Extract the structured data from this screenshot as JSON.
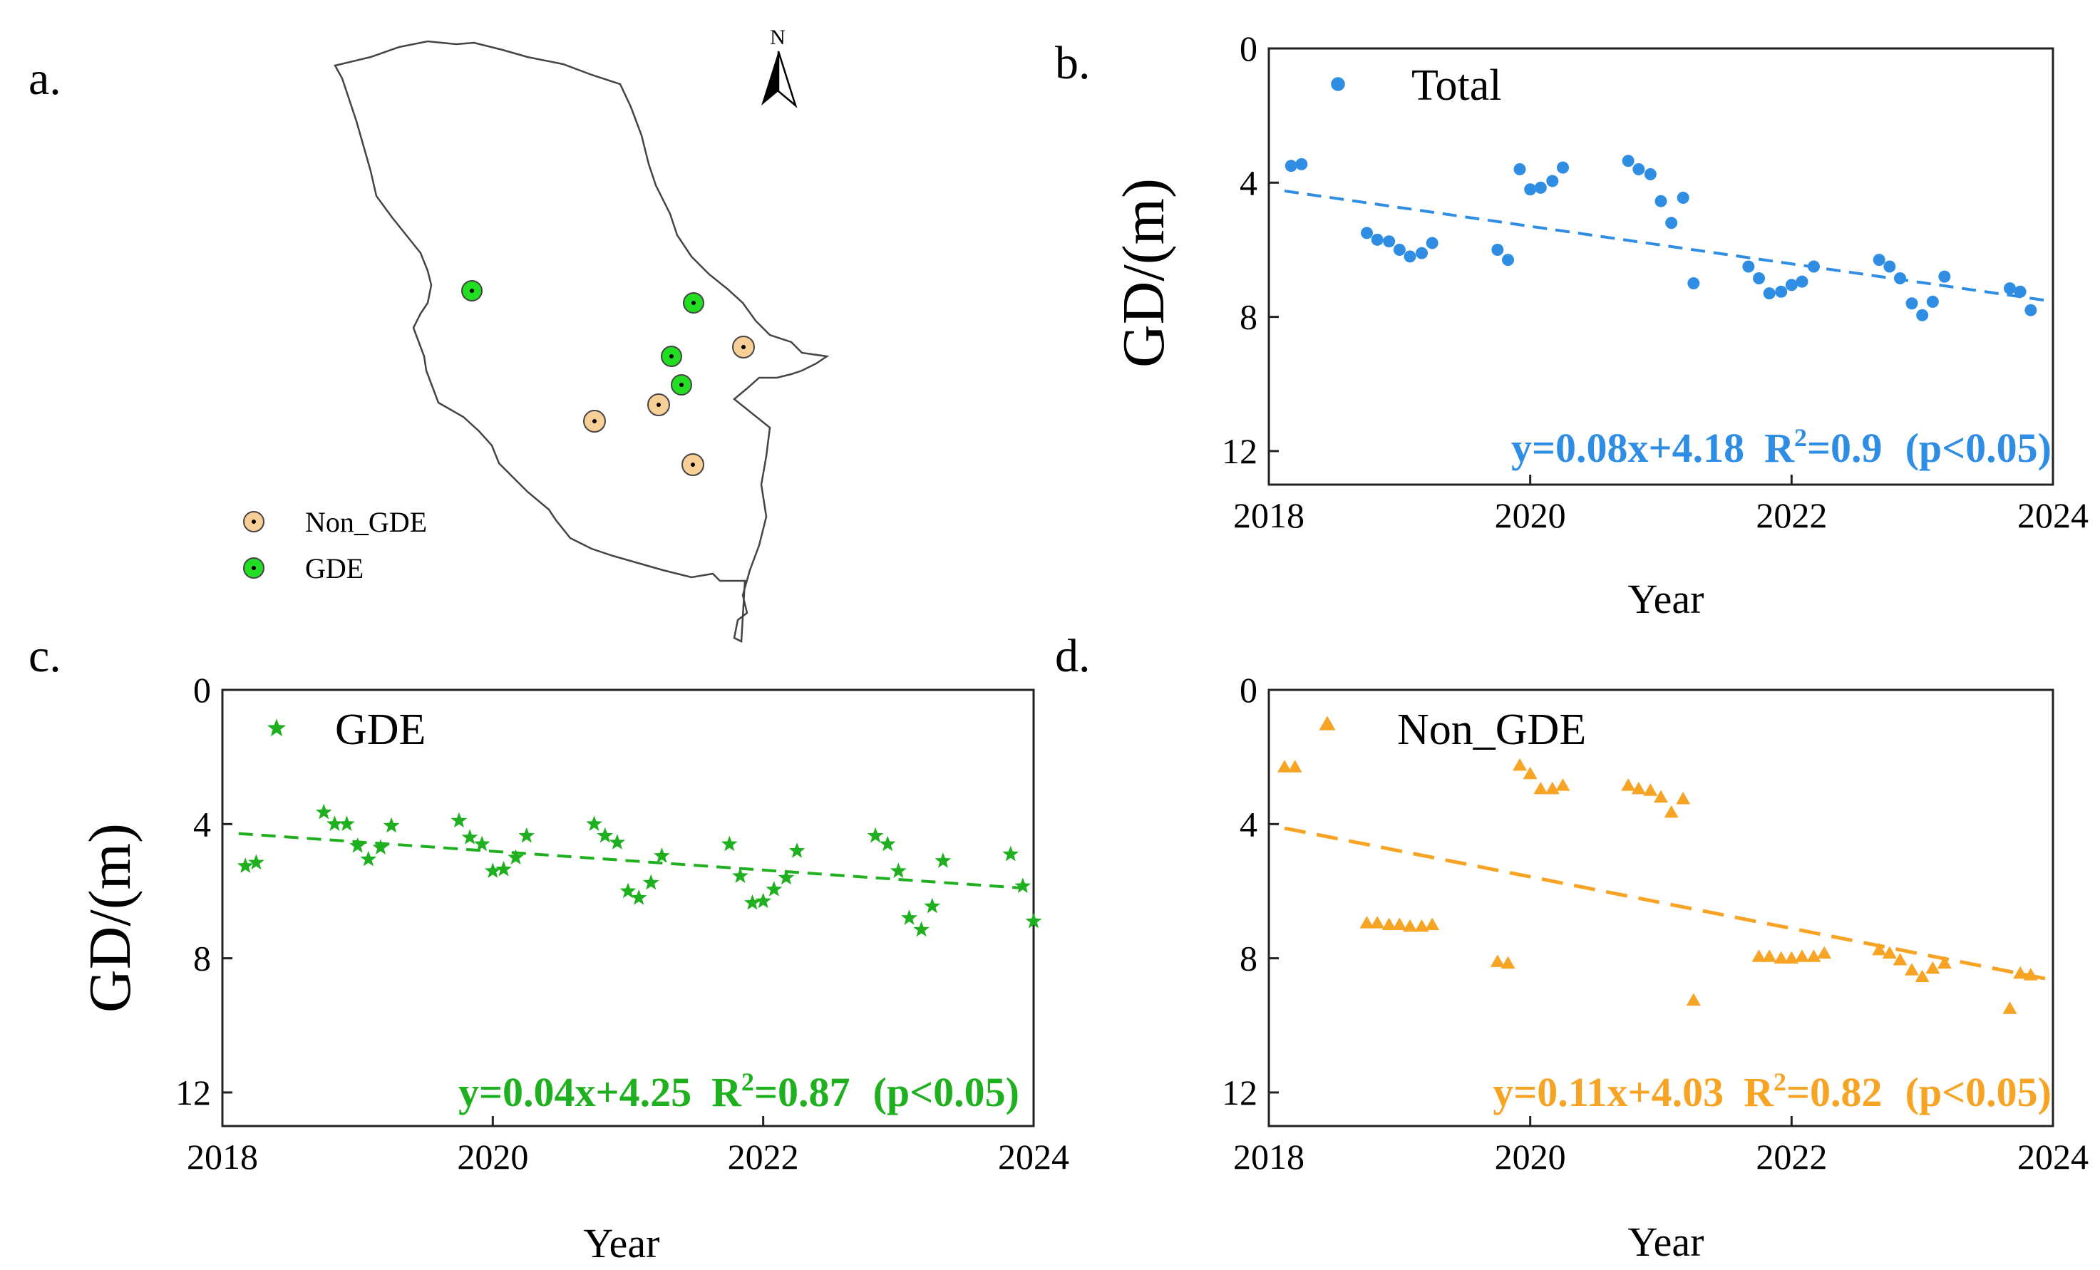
{
  "panels": {
    "a": {
      "label": "a."
    },
    "b": {
      "label": "b."
    },
    "c": {
      "label": "c."
    },
    "d": {
      "label": "d."
    }
  },
  "map": {
    "north_letter": "N",
    "legend": [
      {
        "label": "Non_GDE",
        "color": "#f8cf97"
      },
      {
        "label": "GDE",
        "color": "#22dd22"
      }
    ],
    "outline_color": "#444444"
  },
  "chart_data": [
    {
      "id": "b",
      "type": "scatter",
      "legend": "Total",
      "color": "#2f8de4",
      "marker": "circle",
      "xlabel": "Year",
      "ylabel": "GD/(m)",
      "xlim": [
        2018,
        2024
      ],
      "ylim": [
        0,
        13
      ],
      "y_inverted": true,
      "xticks": [
        2018,
        2020,
        2022,
        2024
      ],
      "yticks": [
        0,
        4,
        8,
        12
      ],
      "trend": {
        "slope": 0.56,
        "intercept": 4.18
      },
      "equation": {
        "fit": "y=0.08x+4.18",
        "r2_prefix": "R",
        "r2_sup": "2",
        "r2_value": "=0.9",
        "p": "(p<0.05)"
      },
      "points": [
        [
          2018.17,
          3.5
        ],
        [
          2018.25,
          3.45
        ],
        [
          2018.75,
          5.5
        ],
        [
          2018.83,
          5.7
        ],
        [
          2018.92,
          5.75
        ],
        [
          2019.0,
          6.0
        ],
        [
          2019.08,
          6.2
        ],
        [
          2019.17,
          6.1
        ],
        [
          2019.25,
          5.8
        ],
        [
          2019.75,
          6.0
        ],
        [
          2019.83,
          6.3
        ],
        [
          2019.92,
          3.6
        ],
        [
          2020.0,
          4.2
        ],
        [
          2020.08,
          4.15
        ],
        [
          2020.17,
          3.95
        ],
        [
          2020.25,
          3.55
        ],
        [
          2020.75,
          3.35
        ],
        [
          2020.83,
          3.6
        ],
        [
          2020.92,
          3.75
        ],
        [
          2021.0,
          4.55
        ],
        [
          2021.08,
          5.2
        ],
        [
          2021.17,
          4.45
        ],
        [
          2021.25,
          7.0
        ],
        [
          2021.67,
          6.5
        ],
        [
          2021.75,
          6.85
        ],
        [
          2021.83,
          7.3
        ],
        [
          2021.92,
          7.25
        ],
        [
          2022.0,
          7.05
        ],
        [
          2022.08,
          6.95
        ],
        [
          2022.17,
          6.5
        ],
        [
          2022.67,
          6.3
        ],
        [
          2022.75,
          6.5
        ],
        [
          2022.83,
          6.85
        ],
        [
          2022.92,
          7.6
        ],
        [
          2023.0,
          7.95
        ],
        [
          2023.08,
          7.55
        ],
        [
          2023.17,
          6.8
        ],
        [
          2023.67,
          7.15
        ],
        [
          2023.75,
          7.25
        ],
        [
          2023.83,
          7.8
        ]
      ]
    },
    {
      "id": "c",
      "type": "scatter",
      "legend": "GDE",
      "color": "#1fb01f",
      "marker": "star",
      "xlabel": "Year",
      "ylabel": "GD/(m)",
      "xlim": [
        2018,
        2024
      ],
      "ylim": [
        0,
        13
      ],
      "y_inverted": true,
      "xticks": [
        2018,
        2020,
        2022,
        2024
      ],
      "yticks": [
        0,
        4,
        8,
        12
      ],
      "trend": {
        "slope": 0.28,
        "intercept": 4.25
      },
      "equation": {
        "fit": "y=0.04x+4.25",
        "r2_prefix": "R",
        "r2_sup": "2",
        "r2_value": "=0.87",
        "p": "(p<0.05)"
      },
      "points": [
        [
          2018.17,
          5.25
        ],
        [
          2018.25,
          5.15
        ],
        [
          2018.75,
          3.65
        ],
        [
          2018.83,
          4.0
        ],
        [
          2018.92,
          4.0
        ],
        [
          2019.0,
          4.65
        ],
        [
          2019.08,
          5.05
        ],
        [
          2019.17,
          4.7
        ],
        [
          2019.25,
          4.05
        ],
        [
          2019.75,
          3.9
        ],
        [
          2019.83,
          4.4
        ],
        [
          2019.92,
          4.6
        ],
        [
          2020.0,
          5.4
        ],
        [
          2020.08,
          5.35
        ],
        [
          2020.17,
          5.0
        ],
        [
          2020.25,
          4.35
        ],
        [
          2020.75,
          4.0
        ],
        [
          2020.83,
          4.35
        ],
        [
          2020.92,
          4.55
        ],
        [
          2021.0,
          6.0
        ],
        [
          2021.08,
          6.2
        ],
        [
          2021.17,
          5.75
        ],
        [
          2021.25,
          4.95
        ],
        [
          2021.75,
          4.6
        ],
        [
          2021.83,
          5.55
        ],
        [
          2021.92,
          6.35
        ],
        [
          2022.0,
          6.3
        ],
        [
          2022.08,
          5.95
        ],
        [
          2022.17,
          5.6
        ],
        [
          2022.25,
          4.8
        ],
        [
          2022.83,
          4.35
        ],
        [
          2022.92,
          4.6
        ],
        [
          2023.0,
          5.4
        ],
        [
          2023.08,
          6.8
        ],
        [
          2023.17,
          7.15
        ],
        [
          2023.25,
          6.45
        ],
        [
          2023.33,
          5.1
        ],
        [
          2023.83,
          4.9
        ],
        [
          2023.92,
          5.85
        ],
        [
          2024.0,
          6.9
        ]
      ]
    },
    {
      "id": "d",
      "type": "scatter",
      "legend": "Non_GDE",
      "color": "#f7a425",
      "marker": "triangle",
      "xlabel": "Year",
      "ylabel": "",
      "xlim": [
        2018,
        2024
      ],
      "ylim": [
        0,
        13
      ],
      "y_inverted": true,
      "xticks": [
        2018,
        2020,
        2022,
        2024
      ],
      "yticks": [
        0,
        4,
        8,
        12
      ],
      "trend": {
        "slope": 0.77,
        "intercept": 4.03
      },
      "equation": {
        "fit": "y=0.11x+4.03",
        "r2_prefix": "R",
        "r2_sup": "2",
        "r2_value": "=0.82",
        "p": "(p<0.05)"
      },
      "points": [
        [
          2018.12,
          2.3
        ],
        [
          2018.2,
          2.3
        ],
        [
          2018.75,
          6.95
        ],
        [
          2018.83,
          6.95
        ],
        [
          2018.92,
          7.0
        ],
        [
          2019.0,
          7.0
        ],
        [
          2019.08,
          7.05
        ],
        [
          2019.17,
          7.05
        ],
        [
          2019.25,
          7.0
        ],
        [
          2019.75,
          8.1
        ],
        [
          2019.83,
          8.15
        ],
        [
          2019.92,
          2.25
        ],
        [
          2020.0,
          2.5
        ],
        [
          2020.08,
          2.95
        ],
        [
          2020.17,
          2.95
        ],
        [
          2020.25,
          2.85
        ],
        [
          2020.75,
          2.85
        ],
        [
          2020.83,
          2.95
        ],
        [
          2020.92,
          3.0
        ],
        [
          2021.0,
          3.2
        ],
        [
          2021.08,
          3.65
        ],
        [
          2021.17,
          3.25
        ],
        [
          2021.25,
          9.25
        ],
        [
          2021.75,
          7.95
        ],
        [
          2021.83,
          7.95
        ],
        [
          2021.92,
          8.0
        ],
        [
          2022.0,
          8.0
        ],
        [
          2022.08,
          7.95
        ],
        [
          2022.17,
          7.95
        ],
        [
          2022.25,
          7.85
        ],
        [
          2022.67,
          7.75
        ],
        [
          2022.75,
          7.85
        ],
        [
          2022.83,
          8.05
        ],
        [
          2022.92,
          8.35
        ],
        [
          2023.0,
          8.55
        ],
        [
          2023.08,
          8.3
        ],
        [
          2023.17,
          8.15
        ],
        [
          2023.67,
          9.5
        ],
        [
          2023.75,
          8.45
        ],
        [
          2023.83,
          8.5
        ]
      ]
    }
  ]
}
